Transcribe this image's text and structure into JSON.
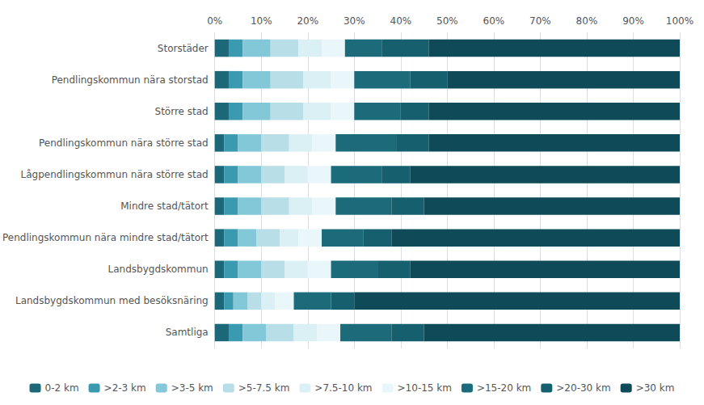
{
  "chart_data": {
    "type": "bar",
    "orientation": "horizontal",
    "stacked": true,
    "categories": [
      "Storstäder",
      "Pendlingskommun nära storstad",
      "Större stad",
      "Pendlingskommun nära större stad",
      "Lågpendlingskommun nära större stad",
      "Mindre stad/tätort",
      "Pendlingskommun nära mindre stad/tätort",
      "Landsbygdskommun",
      "Landsbygdskommun med besöksnäring",
      "Samtliga"
    ],
    "series": [
      {
        "name": "0-2 km",
        "color": "#1c6878",
        "values": [
          3,
          3,
          3,
          2,
          2,
          2,
          2,
          2,
          2,
          3
        ]
      },
      {
        "name": ">2-3 km",
        "color": "#3a9ab0",
        "values": [
          3,
          3,
          3,
          3,
          3,
          3,
          3,
          3,
          2,
          3
        ]
      },
      {
        "name": ">3-5 km",
        "color": "#82c8d8",
        "values": [
          6,
          6,
          6,
          5,
          5,
          5,
          4,
          5,
          3,
          5
        ]
      },
      {
        "name": ">5-7.5 km",
        "color": "#b8dfe8",
        "values": [
          6,
          7,
          7,
          6,
          5,
          6,
          5,
          5,
          3,
          6
        ]
      },
      {
        "name": ">7.5-10 km",
        "color": "#daf0f5",
        "values": [
          5,
          6,
          6,
          5,
          5,
          5,
          4,
          5,
          3,
          5
        ]
      },
      {
        "name": ">10-15 km",
        "color": "#eaf7fa",
        "values": [
          5,
          5,
          5,
          5,
          5,
          5,
          5,
          5,
          4,
          5
        ]
      },
      {
        "name": ">15-20 km",
        "color": "#1b6b7b",
        "values": [
          8,
          12,
          10,
          13,
          11,
          12,
          9,
          10,
          8,
          11
        ]
      },
      {
        "name": ">20-30 km",
        "color": "#155f6e",
        "values": [
          10,
          8,
          6,
          7,
          6,
          7,
          6,
          7,
          5,
          7
        ]
      },
      {
        "name": ">30 km",
        "color": "#0e4a58",
        "values": [
          54,
          50,
          54,
          54,
          58,
          55,
          62,
          58,
          70,
          55
        ]
      }
    ],
    "xlim": [
      0,
      100
    ],
    "xticks": [
      {
        "value": 0,
        "label": "0%"
      },
      {
        "value": 10,
        "label": "10%"
      },
      {
        "value": 20,
        "label": "20%"
      },
      {
        "value": 30,
        "label": "30%"
      },
      {
        "value": 40,
        "label": "40%"
      },
      {
        "value": 50,
        "label": "50%"
      },
      {
        "value": 60,
        "label": "60%"
      },
      {
        "value": 70,
        "label": "70%"
      },
      {
        "value": 80,
        "label": "80%"
      },
      {
        "value": 90,
        "label": "90%"
      },
      {
        "value": 100,
        "label": "100%"
      }
    ],
    "grid": true,
    "legend": "bottom"
  }
}
